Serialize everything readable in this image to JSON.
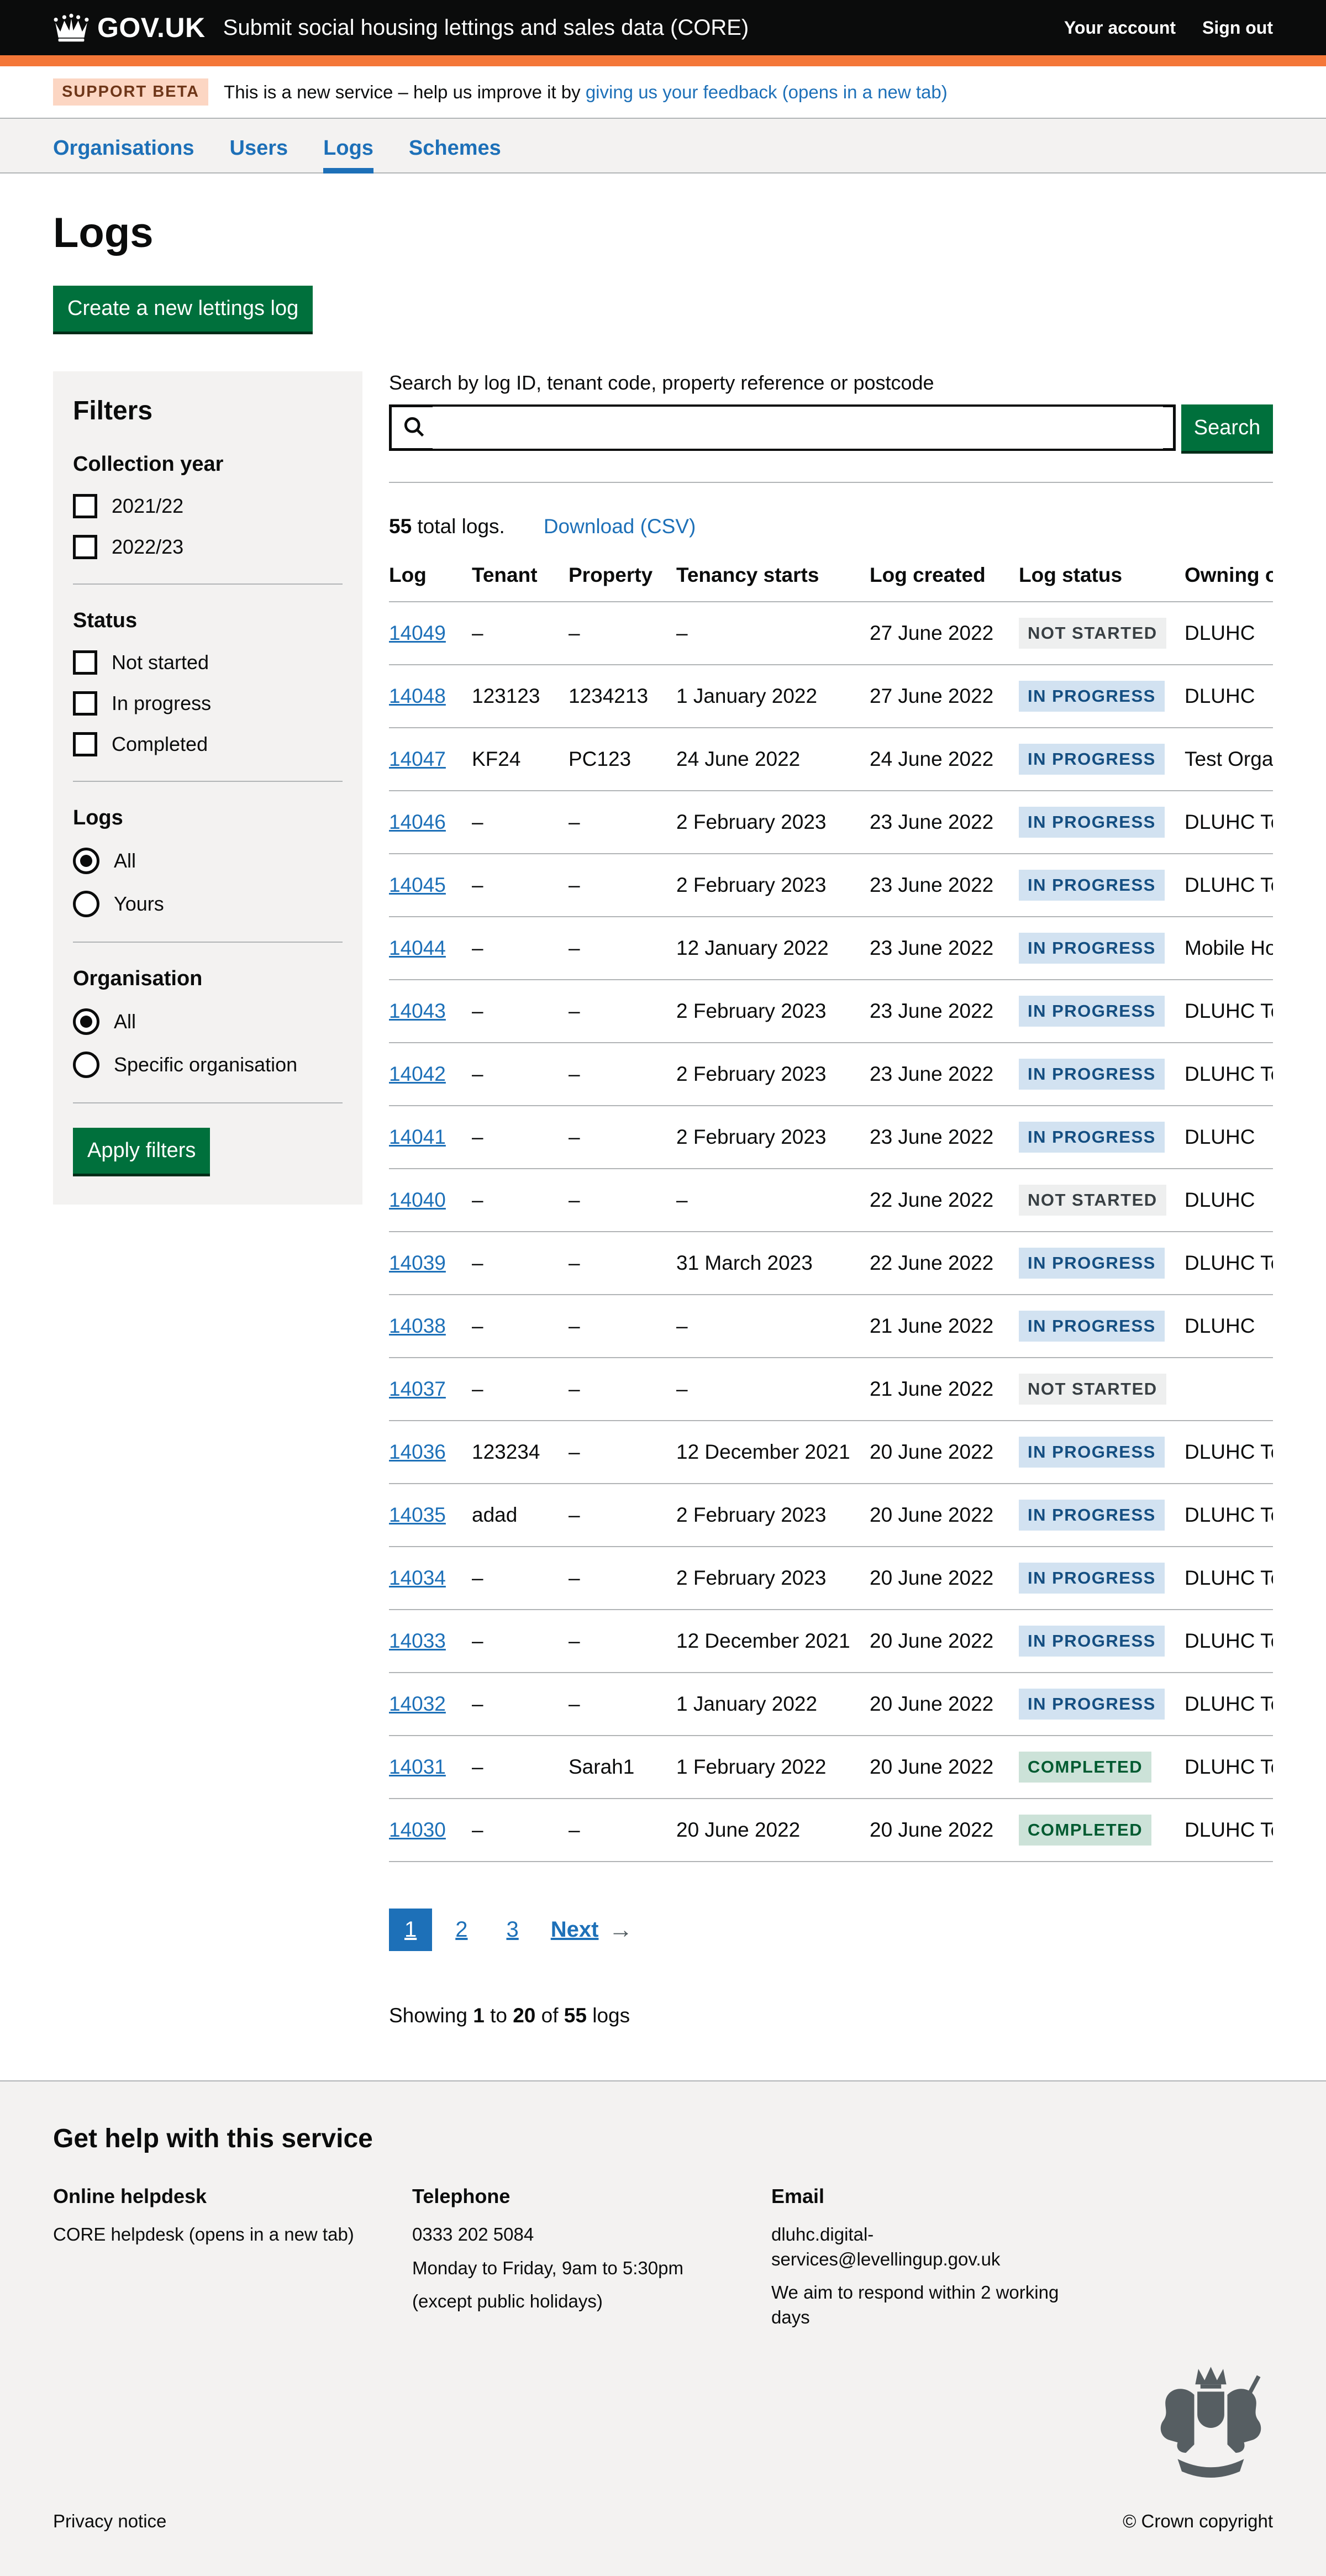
{
  "colors": {
    "brand_black": "#0b0c0c",
    "header_border_orange": "#f47738",
    "link_blue": "#1d70b8",
    "button_green": "#00703c",
    "panel_grey": "#f3f2f1",
    "border_grey": "#b1b4b6",
    "tag_blue_bg": "#d2e2f1",
    "tag_blue_text": "#144e81",
    "tag_grey_bg": "#eeefef",
    "tag_grey_text": "#383f43",
    "tag_green_bg": "#cce2d8",
    "tag_green_text": "#005a30"
  },
  "header": {
    "logo_text": "GOV.UK",
    "service_name": "Submit social housing lettings and sales data (CORE)",
    "account_label": "Your account",
    "sign_out_label": "Sign out"
  },
  "phase_banner": {
    "tag": "SUPPORT BETA",
    "text_before": "This is a new service – help us improve it by ",
    "link_text": "giving us your feedback (opens in a new tab)"
  },
  "nav": {
    "items": [
      {
        "label": "Organisations",
        "active": false
      },
      {
        "label": "Users",
        "active": false
      },
      {
        "label": "Logs",
        "active": true
      },
      {
        "label": "Schemes",
        "active": false
      }
    ]
  },
  "page": {
    "heading": "Logs",
    "create_button": "Create a new lettings log"
  },
  "filters": {
    "title": "Filters",
    "apply_button": "Apply filters",
    "groups": [
      {
        "id": "collection-year",
        "title": "Collection year",
        "type": "checkbox",
        "options": [
          {
            "label": "2021/22",
            "checked": false
          },
          {
            "label": "2022/23",
            "checked": false
          }
        ]
      },
      {
        "id": "status",
        "title": "Status",
        "type": "checkbox",
        "options": [
          {
            "label": "Not started",
            "checked": false
          },
          {
            "label": "In progress",
            "checked": false
          },
          {
            "label": "Completed",
            "checked": false
          }
        ]
      },
      {
        "id": "logs",
        "title": "Logs",
        "type": "radio",
        "options": [
          {
            "label": "All",
            "checked": true
          },
          {
            "label": "Yours",
            "checked": false
          }
        ]
      },
      {
        "id": "organisation",
        "title": "Organisation",
        "type": "radio",
        "options": [
          {
            "label": "All",
            "checked": true
          },
          {
            "label": "Specific organisation",
            "checked": false
          }
        ]
      }
    ]
  },
  "search": {
    "label": "Search by log ID, tenant code, property reference or postcode",
    "value": "",
    "button": "Search"
  },
  "results": {
    "total": "55",
    "total_suffix": " total logs.",
    "download_label": "Download (CSV)"
  },
  "table": {
    "columns": [
      "Log",
      "Tenant",
      "Property",
      "Tenancy starts",
      "Log created",
      "Log status",
      "Owning organisation"
    ],
    "rows": [
      {
        "log": "14049",
        "tenant": "–",
        "property": "–",
        "tenancy_starts": "–",
        "log_created": "27 June 2022",
        "status": "NOT STARTED",
        "status_variant": "grey",
        "owning": "DLUHC"
      },
      {
        "log": "14048",
        "tenant": "123123",
        "property": "1234213",
        "tenancy_starts": "1 January 2022",
        "log_created": "27 June 2022",
        "status": "IN PROGRESS",
        "status_variant": "blue",
        "owning": "DLUHC"
      },
      {
        "log": "14047",
        "tenant": "KF24",
        "property": "PC123",
        "tenancy_starts": "24 June 2022",
        "log_created": "24 June 2022",
        "status": "IN PROGRESS",
        "status_variant": "blue",
        "owning": "Test Organisa"
      },
      {
        "log": "14046",
        "tenant": "–",
        "property": "–",
        "tenancy_starts": "2 February 2023",
        "log_created": "23 June 2022",
        "status": "IN PROGRESS",
        "status_variant": "blue",
        "owning": "DLUHC Test"
      },
      {
        "log": "14045",
        "tenant": "–",
        "property": "–",
        "tenancy_starts": "2 February 2023",
        "log_created": "23 June 2022",
        "status": "IN PROGRESS",
        "status_variant": "blue",
        "owning": "DLUHC Test"
      },
      {
        "log": "14044",
        "tenant": "–",
        "property": "–",
        "tenancy_starts": "12 January 2022",
        "log_created": "23 June 2022",
        "status": "IN PROGRESS",
        "status_variant": "blue",
        "owning": "Mobile Hous"
      },
      {
        "log": "14043",
        "tenant": "–",
        "property": "–",
        "tenancy_starts": "2 February 2023",
        "log_created": "23 June 2022",
        "status": "IN PROGRESS",
        "status_variant": "blue",
        "owning": "DLUHC Test"
      },
      {
        "log": "14042",
        "tenant": "–",
        "property": "–",
        "tenancy_starts": "2 February 2023",
        "log_created": "23 June 2022",
        "status": "IN PROGRESS",
        "status_variant": "blue",
        "owning": "DLUHC Test"
      },
      {
        "log": "14041",
        "tenant": "–",
        "property": "–",
        "tenancy_starts": "2 February 2023",
        "log_created": "23 June 2022",
        "status": "IN PROGRESS",
        "status_variant": "blue",
        "owning": "DLUHC"
      },
      {
        "log": "14040",
        "tenant": "–",
        "property": "–",
        "tenancy_starts": "–",
        "log_created": "22 June 2022",
        "status": "NOT STARTED",
        "status_variant": "grey",
        "owning": "DLUHC"
      },
      {
        "log": "14039",
        "tenant": "–",
        "property": "–",
        "tenancy_starts": "31 March 2023",
        "log_created": "22 June 2022",
        "status": "IN PROGRESS",
        "status_variant": "blue",
        "owning": "DLUHC Test"
      },
      {
        "log": "14038",
        "tenant": "–",
        "property": "–",
        "tenancy_starts": "–",
        "log_created": "21 June 2022",
        "status": "IN PROGRESS",
        "status_variant": "blue",
        "owning": "DLUHC"
      },
      {
        "log": "14037",
        "tenant": "–",
        "property": "–",
        "tenancy_starts": "–",
        "log_created": "21 June 2022",
        "status": "NOT STARTED",
        "status_variant": "grey",
        "owning": ""
      },
      {
        "log": "14036",
        "tenant": "123234",
        "property": "–",
        "tenancy_starts": "12 December 2021",
        "log_created": "20 June 2022",
        "status": "IN PROGRESS",
        "status_variant": "blue",
        "owning": "DLUHC Test"
      },
      {
        "log": "14035",
        "tenant": "adad",
        "property": "–",
        "tenancy_starts": "2 February 2023",
        "log_created": "20 June 2022",
        "status": "IN PROGRESS",
        "status_variant": "blue",
        "owning": "DLUHC Test"
      },
      {
        "log": "14034",
        "tenant": "–",
        "property": "–",
        "tenancy_starts": "2 February 2023",
        "log_created": "20 June 2022",
        "status": "IN PROGRESS",
        "status_variant": "blue",
        "owning": "DLUHC Test"
      },
      {
        "log": "14033",
        "tenant": "–",
        "property": "–",
        "tenancy_starts": "12 December 2021",
        "log_created": "20 June 2022",
        "status": "IN PROGRESS",
        "status_variant": "blue",
        "owning": "DLUHC Test"
      },
      {
        "log": "14032",
        "tenant": "–",
        "property": "–",
        "tenancy_starts": "1 January 2022",
        "log_created": "20 June 2022",
        "status": "IN PROGRESS",
        "status_variant": "blue",
        "owning": "DLUHC Test"
      },
      {
        "log": "14031",
        "tenant": "–",
        "property": "Sarah1",
        "tenancy_starts": "1 February 2022",
        "log_created": "20 June 2022",
        "status": "COMPLETED",
        "status_variant": "green",
        "owning": "DLUHC Test"
      },
      {
        "log": "14030",
        "tenant": "–",
        "property": "–",
        "tenancy_starts": "20 June 2022",
        "log_created": "20 June 2022",
        "status": "COMPLETED",
        "status_variant": "green",
        "owning": "DLUHC Test"
      }
    ]
  },
  "pagination": {
    "pages": [
      {
        "label": "1",
        "current": true
      },
      {
        "label": "2",
        "current": false
      },
      {
        "label": "3",
        "current": false
      }
    ],
    "next_label": "Next",
    "next_arrow": "→"
  },
  "showing": {
    "parts": [
      {
        "text": "Showing ",
        "bold": false
      },
      {
        "text": "1",
        "bold": true
      },
      {
        "text": " to ",
        "bold": false
      },
      {
        "text": "20",
        "bold": true
      },
      {
        "text": " of ",
        "bold": false
      },
      {
        "text": "55",
        "bold": true
      },
      {
        "text": " logs",
        "bold": false
      }
    ]
  },
  "footer": {
    "title": "Get help with this service",
    "columns": [
      {
        "title": "Online helpdesk",
        "lines": [
          {
            "text": "CORE helpdesk (opens in a new tab)",
            "link": true
          }
        ]
      },
      {
        "title": "Telephone",
        "lines": [
          {
            "text": "0333 202 5084",
            "link": false
          },
          {
            "text": "Monday to Friday, 9am to 5:30pm",
            "link": false
          },
          {
            "text": "(except public holidays)",
            "link": false
          }
        ]
      },
      {
        "title": "Email",
        "lines": [
          {
            "text": "dluhc.digital-services@levellingup.gov.uk",
            "link": true
          },
          {
            "text": "We aim to respond within 2 working days",
            "link": false
          }
        ]
      }
    ],
    "privacy": "Privacy notice",
    "copyright": "© Crown copyright"
  }
}
